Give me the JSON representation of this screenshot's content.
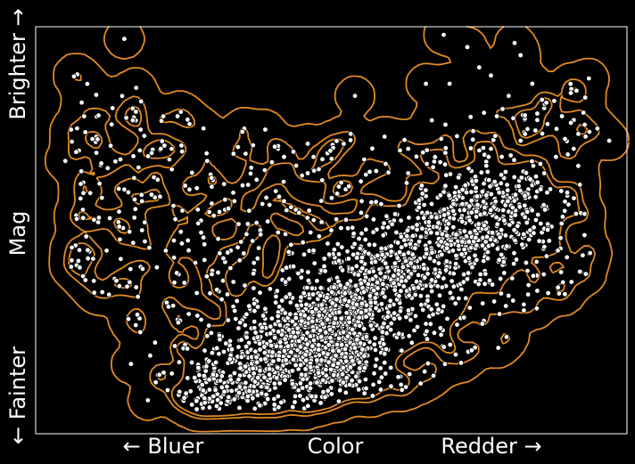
{
  "chart_data": {
    "type": "scatter",
    "title": "",
    "x_axis": {
      "left_label": "← Bluer",
      "center_label": "Color",
      "right_label": "Redder →",
      "tick_labels": "none"
    },
    "y_axis": {
      "bottom_label": "← Fainter",
      "center_label": "Mag",
      "top_label": "Brighter →",
      "tick_labels": "none"
    },
    "xlim": [
      0,
      1
    ],
    "ylim": [
      0,
      1
    ],
    "grid": false,
    "legend": "none",
    "overlay": "density-contours",
    "contour_levels": 3,
    "colors": {
      "background": "#000000",
      "points": "#ffffff",
      "contours": "#e08a22",
      "frame": "#ffffff"
    },
    "sample_points": [
      [
        0.15,
        0.97
      ],
      [
        0.69,
        0.98
      ],
      [
        0.73,
        0.95
      ],
      [
        0.81,
        0.96
      ],
      [
        0.82,
        0.93
      ],
      [
        0.75,
        0.9
      ],
      [
        0.77,
        0.88
      ],
      [
        0.66,
        0.86
      ],
      [
        0.7,
        0.86
      ],
      [
        0.54,
        0.83
      ],
      [
        0.17,
        0.85
      ],
      [
        0.13,
        0.8
      ],
      [
        0.24,
        0.78
      ],
      [
        0.89,
        0.78
      ],
      [
        0.93,
        0.73
      ],
      [
        0.67,
        0.77
      ],
      [
        0.23,
        0.7
      ],
      [
        0.41,
        0.7
      ],
      [
        0.42,
        0.68
      ],
      [
        0.29,
        0.67
      ],
      [
        0.47,
        0.68
      ],
      [
        0.05,
        0.67
      ],
      [
        0.35,
        0.61
      ],
      [
        0.08,
        0.55
      ],
      [
        0.06,
        0.41
      ],
      [
        0.59,
        0.73
      ],
      [
        0.63,
        0.7
      ],
      [
        0.77,
        0.7
      ],
      [
        0.82,
        0.72
      ],
      [
        0.86,
        0.64
      ],
      [
        0.83,
        0.55
      ],
      [
        0.78,
        0.51
      ],
      [
        0.72,
        0.48
      ],
      [
        0.65,
        0.43
      ],
      [
        0.58,
        0.38
      ],
      [
        0.52,
        0.34
      ],
      [
        0.48,
        0.26
      ],
      [
        0.46,
        0.2
      ],
      [
        0.5,
        0.15
      ],
      [
        0.52,
        0.22
      ],
      [
        0.54,
        0.18
      ],
      [
        0.44,
        0.12
      ],
      [
        0.38,
        0.1
      ],
      [
        0.33,
        0.14
      ],
      [
        0.3,
        0.2
      ],
      [
        0.28,
        0.28
      ],
      [
        0.31,
        0.35
      ],
      [
        0.37,
        0.33
      ],
      [
        0.42,
        0.3
      ],
      [
        0.45,
        0.4
      ],
      [
        0.55,
        0.3
      ],
      [
        0.6,
        0.29
      ],
      [
        0.66,
        0.27
      ],
      [
        0.71,
        0.32
      ],
      [
        0.76,
        0.4
      ],
      [
        0.8,
        0.46
      ],
      [
        0.74,
        0.55
      ],
      [
        0.68,
        0.58
      ],
      [
        0.6,
        0.52
      ],
      [
        0.55,
        0.46
      ],
      [
        0.5,
        0.5
      ],
      [
        0.44,
        0.55
      ],
      [
        0.38,
        0.5
      ],
      [
        0.33,
        0.45
      ],
      [
        0.27,
        0.42
      ],
      [
        0.22,
        0.45
      ],
      [
        0.18,
        0.5
      ],
      [
        0.14,
        0.52
      ],
      [
        0.12,
        0.45
      ],
      [
        0.17,
        0.36
      ],
      [
        0.24,
        0.28
      ],
      [
        0.29,
        0.24
      ],
      [
        0.95,
        0.75
      ],
      [
        0.97,
        0.72
      ],
      [
        0.55,
        0.62
      ],
      [
        0.51,
        0.59
      ],
      [
        0.63,
        0.64
      ],
      [
        0.46,
        0.64
      ],
      [
        0.39,
        0.58
      ],
      [
        0.32,
        0.55
      ],
      [
        0.26,
        0.6
      ],
      [
        0.2,
        0.63
      ],
      [
        0.15,
        0.6
      ],
      [
        0.11,
        0.66
      ],
      [
        0.36,
        0.22
      ],
      [
        0.4,
        0.18
      ],
      [
        0.43,
        0.25
      ],
      [
        0.47,
        0.32
      ],
      [
        0.53,
        0.4
      ],
      [
        0.57,
        0.35
      ],
      [
        0.62,
        0.4
      ],
      [
        0.67,
        0.35
      ],
      [
        0.7,
        0.42
      ],
      [
        0.73,
        0.38
      ],
      [
        0.79,
        0.57
      ],
      [
        0.84,
        0.62
      ],
      [
        0.88,
        0.68
      ],
      [
        0.91,
        0.7
      ],
      [
        0.86,
        0.8
      ],
      [
        0.84,
        0.86
      ],
      [
        0.8,
        0.83
      ],
      [
        0.78,
        0.78
      ]
    ]
  }
}
